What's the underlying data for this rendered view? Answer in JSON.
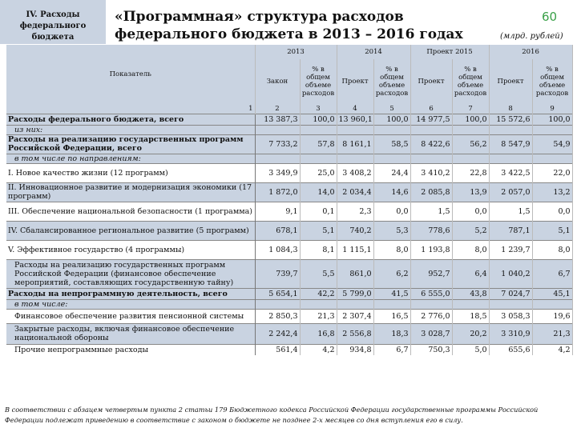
{
  "section_label": "IV. Расходы федерального бюджета",
  "title": "«Программная» структура расходов федерального бюджета в 2013 – 2016 годах",
  "page_number": "60",
  "units": "(млрд. рублей)",
  "header": {
    "indicator": "Показатель",
    "y2013": "2013",
    "y2014": "2014",
    "y2015": "Проект 2015",
    "y2016": "2016",
    "law": "Закон",
    "pct": "% в общем объеме расходов",
    "project": "Проект",
    "colnums": [
      "1",
      "2",
      "3",
      "4",
      "5",
      "6",
      "7",
      "8",
      "9"
    ]
  },
  "rows": [
    {
      "label": "Расходы федерального бюджета, всего",
      "style": "bold",
      "values": [
        "13 387,3",
        "100,0",
        "13 960,1",
        "100,0",
        "14 977,5",
        "100,0",
        "15 572,6",
        "100,0"
      ]
    },
    {
      "label": "из них:",
      "style": "ital-ind",
      "values": []
    },
    {
      "label": "Расходы на реализацию государственных программ Российской Федерации, всего",
      "style": "bold",
      "values": [
        "7 733,2",
        "57,8",
        "8 161,1",
        "58,5",
        "8 422,6",
        "56,2",
        "8 547,9",
        "54,9"
      ]
    },
    {
      "label": "в том числе по направлениям:",
      "style": "ital-ind",
      "values": []
    },
    {
      "label": "I. Новое качество жизни\n(12 программ)",
      "style": "normal",
      "values": [
        "3 349,9",
        "25,0",
        "3 408,2",
        "24,4",
        "3 410,2",
        "22,8",
        "3 422,5",
        "22,0"
      ]
    },
    {
      "label": "II. Инновационное развитие и модернизация экономики\n(17 программ)",
      "style": "normal",
      "values": [
        "1 872,0",
        "14,0",
        "2 034,4",
        "14,6",
        "2 085,8",
        "13,9",
        "2 057,0",
        "13,2"
      ]
    },
    {
      "label": "III. Обеспечение национальной безопасности\n(1 программа)",
      "style": "normal",
      "values": [
        "9,1",
        "0,1",
        "2,3",
        "0,0",
        "1,5",
        "0,0",
        "1,5",
        "0,0"
      ]
    },
    {
      "label": "IV. Сбалансированное региональное развитие\n(5 программ)",
      "style": "normal",
      "values": [
        "678,1",
        "5,1",
        "740,2",
        "5,3",
        "778,6",
        "5,2",
        "787,1",
        "5,1"
      ]
    },
    {
      "label": "V. Эффективное государство\n(4 программы)",
      "style": "normal",
      "values": [
        "1 084,3",
        "8,1",
        "1 115,1",
        "8,0",
        "1 193,8",
        "8,0",
        "1 239,7",
        "8,0"
      ]
    },
    {
      "label": "Расходы на реализацию государственных программ Российской Федерации (финансовое обеспечение мероприятий, составляющих государственную тайну)",
      "style": "normal-ind",
      "values": [
        "739,7",
        "5,5",
        "861,0",
        "6,2",
        "952,7",
        "6,4",
        "1 040,2",
        "6,7"
      ]
    },
    {
      "label": "Расходы на непрограммную деятельность, всего",
      "style": "bold",
      "values": [
        "5 654,1",
        "42,2",
        "5 799,0",
        "41,5",
        "6 555,0",
        "43,8",
        "7 024,7",
        "45,1"
      ]
    },
    {
      "label": "в том числе:",
      "style": "ital-ind",
      "values": []
    },
    {
      "label": "Финансовое обеспечение развития пенсионной системы",
      "style": "normal-ind",
      "values": [
        "2 850,3",
        "21,3",
        "2 307,4",
        "16,5",
        "2 776,0",
        "18,5",
        "3 058,3",
        "19,6"
      ]
    },
    {
      "label": "Закрытые расходы, включая финансовое обеспечение национальной обороны",
      "style": "normal-ind",
      "values": [
        "2 242,4",
        "16,8",
        "2 556,8",
        "18,3",
        "3 028,7",
        "20,2",
        "3 310,9",
        "21,3"
      ]
    },
    {
      "label": "Прочие непрограммные расходы",
      "style": "normal-ind",
      "values": [
        "561,4",
        "4,2",
        "934,8",
        "6,7",
        "750,3",
        "5,0",
        "655,6",
        "4,2"
      ]
    }
  ],
  "footnote": "В соответствии с абзацем четвертым пункта 2 статьи 179 Бюджетного кодекса Российской Федерации государственные программы Российской Федерации подлежат приведению в соответствие с законом о бюджете не позднее 2-х месяцев со дня вступления его в силу."
}
